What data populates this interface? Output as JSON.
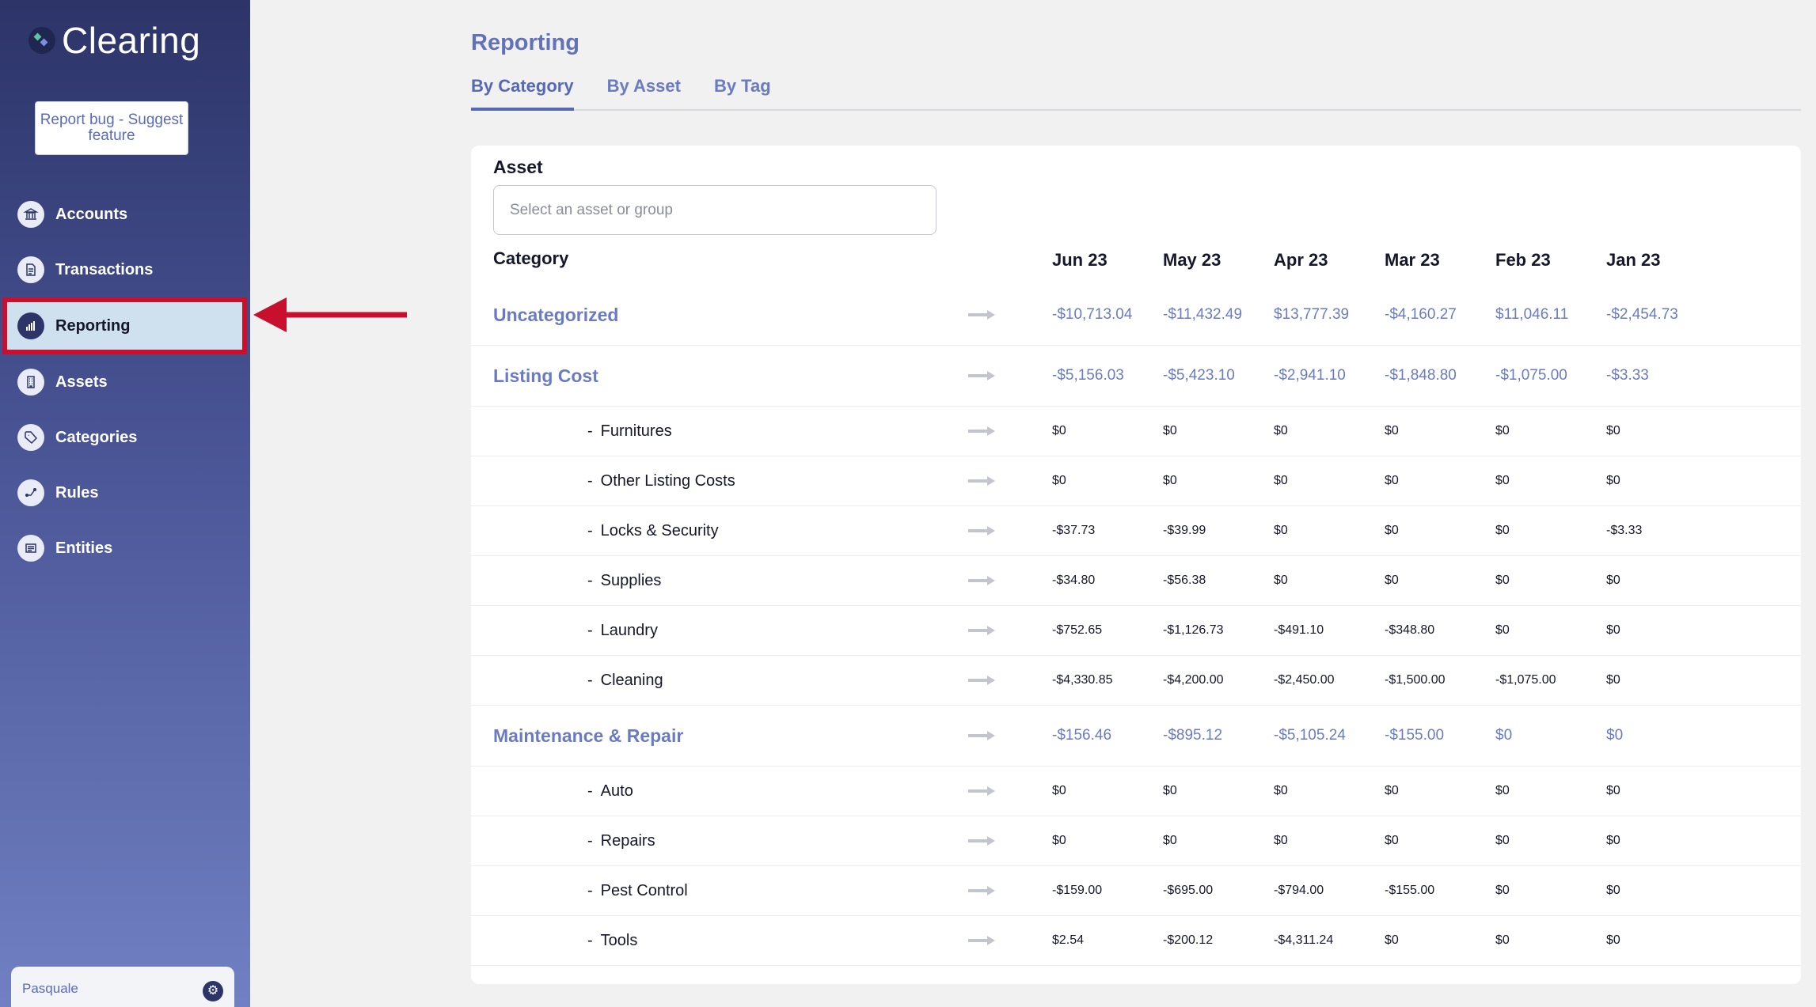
{
  "app": {
    "name": "Clearing"
  },
  "sidebar": {
    "report_button": "Report bug - Suggest feature",
    "items": [
      {
        "label": "Accounts",
        "icon": "bank-icon"
      },
      {
        "label": "Transactions",
        "icon": "document-icon"
      },
      {
        "label": "Reporting",
        "icon": "bar-chart-icon"
      },
      {
        "label": "Assets",
        "icon": "building-icon"
      },
      {
        "label": "Categories",
        "icon": "tag-icon"
      },
      {
        "label": "Rules",
        "icon": "flow-icon"
      },
      {
        "label": "Entities",
        "icon": "list-icon"
      }
    ],
    "active_item": "Reporting",
    "user": {
      "name": "Pasquale"
    }
  },
  "colors": {
    "accent": "#6a7bc2",
    "highlight_border": "#c8102e",
    "active_bg": "#cfe0ee"
  },
  "main": {
    "title": "Reporting",
    "tabs": [
      {
        "label": "By Category"
      },
      {
        "label": "By Asset"
      },
      {
        "label": "By Tag"
      }
    ],
    "active_tab": "By Category",
    "asset_filter": {
      "label": "Asset",
      "placeholder": "Select an asset or group"
    },
    "table": {
      "category_header": "Category",
      "months": [
        "Jun 23",
        "May 23",
        "Apr 23",
        "Mar 23",
        "Feb 23",
        "Jan 23"
      ],
      "rows": [
        {
          "level": "parent",
          "name": "Uncategorized",
          "values": [
            "-$10,713.04",
            "-$11,432.49",
            "$13,777.39",
            "-$4,160.27",
            "$11,046.11",
            "-$2,454.73"
          ]
        },
        {
          "level": "parent",
          "name": "Listing Cost",
          "values": [
            "-$5,156.03",
            "-$5,423.10",
            "-$2,941.10",
            "-$1,848.80",
            "-$1,075.00",
            "-$3.33"
          ]
        },
        {
          "level": "child",
          "name": "Furnitures",
          "values": [
            "$0",
            "$0",
            "$0",
            "$0",
            "$0",
            "$0"
          ]
        },
        {
          "level": "child",
          "name": "Other Listing Costs",
          "values": [
            "$0",
            "$0",
            "$0",
            "$0",
            "$0",
            "$0"
          ]
        },
        {
          "level": "child",
          "name": "Locks & Security",
          "values": [
            "-$37.73",
            "-$39.99",
            "$0",
            "$0",
            "$0",
            "-$3.33"
          ]
        },
        {
          "level": "child",
          "name": "Supplies",
          "values": [
            "-$34.80",
            "-$56.38",
            "$0",
            "$0",
            "$0",
            "$0"
          ]
        },
        {
          "level": "child",
          "name": "Laundry",
          "values": [
            "-$752.65",
            "-$1,126.73",
            "-$491.10",
            "-$348.80",
            "$0",
            "$0"
          ]
        },
        {
          "level": "child",
          "name": "Cleaning",
          "values": [
            "-$4,330.85",
            "-$4,200.00",
            "-$2,450.00",
            "-$1,500.00",
            "-$1,075.00",
            "$0"
          ]
        },
        {
          "level": "parent",
          "name": "Maintenance & Repair",
          "values": [
            "-$156.46",
            "-$895.12",
            "-$5,105.24",
            "-$155.00",
            "$0",
            "$0"
          ]
        },
        {
          "level": "child",
          "name": "Auto",
          "values": [
            "$0",
            "$0",
            "$0",
            "$0",
            "$0",
            "$0"
          ]
        },
        {
          "level": "child",
          "name": "Repairs",
          "values": [
            "$0",
            "$0",
            "$0",
            "$0",
            "$0",
            "$0"
          ]
        },
        {
          "level": "child",
          "name": "Pest Control",
          "values": [
            "-$159.00",
            "-$695.00",
            "-$794.00",
            "-$155.00",
            "$0",
            "$0"
          ]
        },
        {
          "level": "child",
          "name": "Tools",
          "values": [
            "$2.54",
            "-$200.12",
            "-$4,311.24",
            "$0",
            "$0",
            "$0"
          ]
        }
      ]
    }
  }
}
